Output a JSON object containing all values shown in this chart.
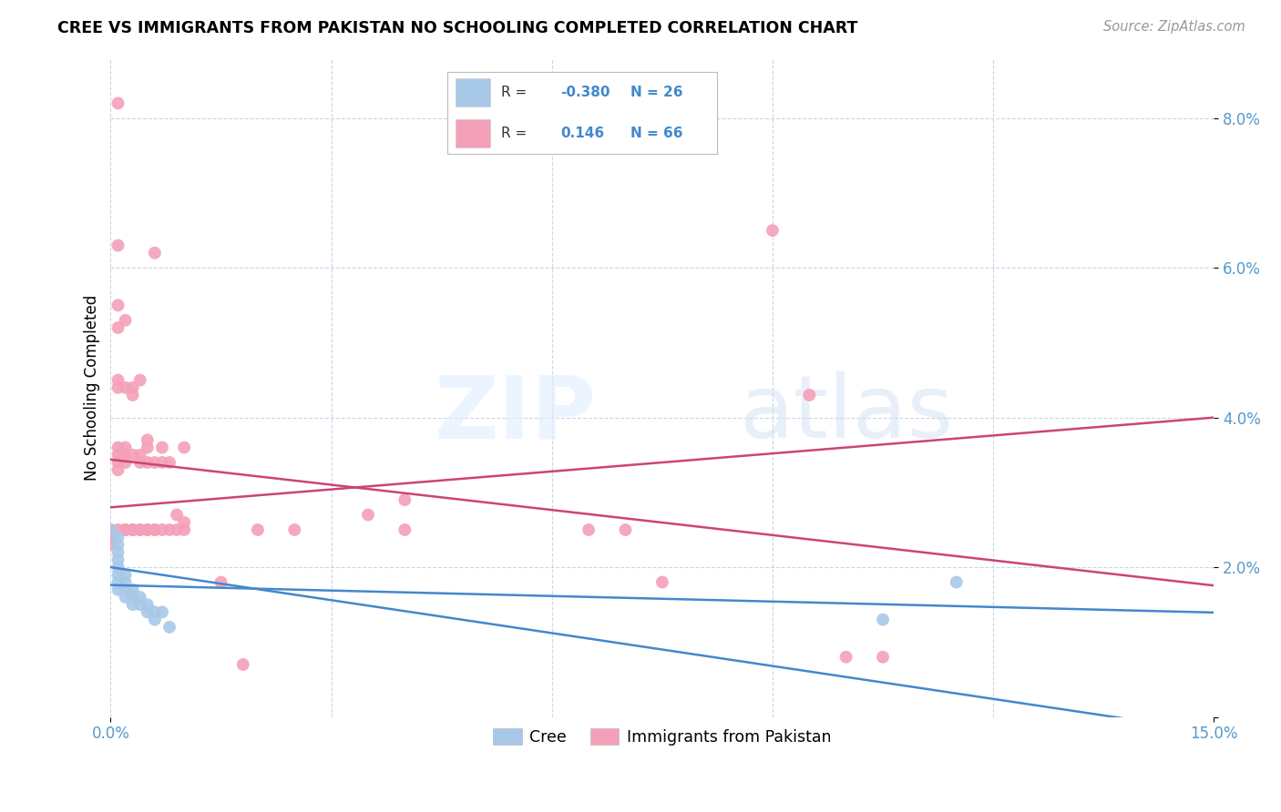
{
  "title": "CREE VS IMMIGRANTS FROM PAKISTAN NO SCHOOLING COMPLETED CORRELATION CHART",
  "source": "Source: ZipAtlas.com",
  "ylabel": "No Schooling Completed",
  "xmin": 0.0,
  "xmax": 0.15,
  "ymin": 0.0,
  "ymax": 0.088,
  "cree_R": -0.38,
  "cree_N": 26,
  "pakistan_R": 0.146,
  "pakistan_N": 66,
  "cree_color": "#a8c8e8",
  "pakistan_color": "#f4a0b8",
  "cree_line_color": "#4488cc",
  "pakistan_line_color": "#cc4477",
  "cree_x": [
    0.0,
    0.001,
    0.001,
    0.001,
    0.001,
    0.001,
    0.001,
    0.001,
    0.001,
    0.002,
    0.002,
    0.002,
    0.002,
    0.003,
    0.003,
    0.003,
    0.004,
    0.004,
    0.005,
    0.005,
    0.006,
    0.006,
    0.007,
    0.008,
    0.105,
    0.115
  ],
  "cree_y": [
    0.025,
    0.024,
    0.023,
    0.022,
    0.021,
    0.02,
    0.019,
    0.018,
    0.017,
    0.019,
    0.018,
    0.017,
    0.016,
    0.017,
    0.016,
    0.015,
    0.016,
    0.015,
    0.015,
    0.014,
    0.014,
    0.013,
    0.014,
    0.012,
    0.013,
    0.018
  ],
  "pakistan_x": [
    0.0,
    0.0,
    0.0,
    0.001,
    0.001,
    0.001,
    0.001,
    0.001,
    0.001,
    0.001,
    0.001,
    0.001,
    0.001,
    0.001,
    0.002,
    0.002,
    0.002,
    0.002,
    0.002,
    0.002,
    0.002,
    0.002,
    0.003,
    0.003,
    0.003,
    0.003,
    0.003,
    0.003,
    0.004,
    0.004,
    0.004,
    0.004,
    0.004,
    0.005,
    0.005,
    0.005,
    0.005,
    0.005,
    0.006,
    0.006,
    0.006,
    0.006,
    0.007,
    0.007,
    0.007,
    0.008,
    0.008,
    0.009,
    0.009,
    0.01,
    0.01,
    0.01,
    0.015,
    0.018,
    0.02,
    0.025,
    0.035,
    0.04,
    0.04,
    0.065,
    0.07,
    0.075,
    0.09,
    0.095,
    0.1,
    0.105
  ],
  "pakistan_y": [
    0.025,
    0.024,
    0.023,
    0.082,
    0.063,
    0.055,
    0.052,
    0.045,
    0.044,
    0.036,
    0.035,
    0.034,
    0.033,
    0.025,
    0.025,
    0.025,
    0.025,
    0.034,
    0.035,
    0.036,
    0.044,
    0.053,
    0.025,
    0.025,
    0.025,
    0.035,
    0.043,
    0.044,
    0.025,
    0.025,
    0.034,
    0.035,
    0.045,
    0.025,
    0.025,
    0.034,
    0.036,
    0.037,
    0.025,
    0.025,
    0.034,
    0.062,
    0.025,
    0.034,
    0.036,
    0.025,
    0.034,
    0.025,
    0.027,
    0.025,
    0.026,
    0.036,
    0.018,
    0.007,
    0.025,
    0.025,
    0.027,
    0.025,
    0.029,
    0.025,
    0.025,
    0.018,
    0.065,
    0.043,
    0.008,
    0.008
  ]
}
